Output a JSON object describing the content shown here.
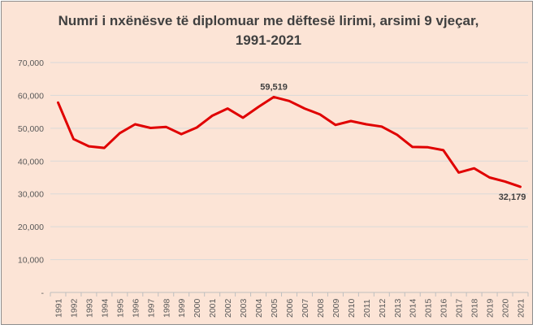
{
  "chart_data": {
    "type": "line",
    "title_line1": "Numri i nxënësve të diplomuar me dëftesë lirimi, arsimi 9 vjeçar,",
    "title_line2": "1991-2021",
    "x": [
      "1991",
      "1992",
      "1993",
      "1994",
      "1995",
      "1996",
      "1997",
      "1998",
      "1999",
      "2000",
      "2001",
      "2002",
      "2003",
      "2004",
      "2005",
      "2006",
      "2007",
      "2008",
      "2009",
      "2010",
      "2011",
      "2012",
      "2013",
      "2014",
      "2015",
      "2016",
      "2017",
      "2018",
      "2019",
      "2020",
      "2021"
    ],
    "series": [
      {
        "values": [
          57800,
          46700,
          44500,
          44000,
          48500,
          51200,
          50100,
          50400,
          48200,
          50200,
          53800,
          56000,
          53200,
          56500,
          59519,
          58300,
          56000,
          54200,
          51000,
          52200,
          51200,
          50500,
          48000,
          44300,
          44200,
          43300,
          36500,
          37800,
          35000,
          33800,
          32179
        ],
        "color": "#e00000"
      }
    ],
    "yticks": [
      "-",
      "10,000",
      "20,000",
      "30,000",
      "40,000",
      "50,000",
      "60,000",
      "70,000"
    ],
    "ylim": [
      0,
      70000
    ],
    "data_labels": [
      {
        "x": "2005",
        "text": "59,519"
      },
      {
        "x": "2021",
        "text": "32,179"
      }
    ],
    "grid": true,
    "background": "#fce4d6",
    "gridline_color": "#d9d9d9"
  }
}
